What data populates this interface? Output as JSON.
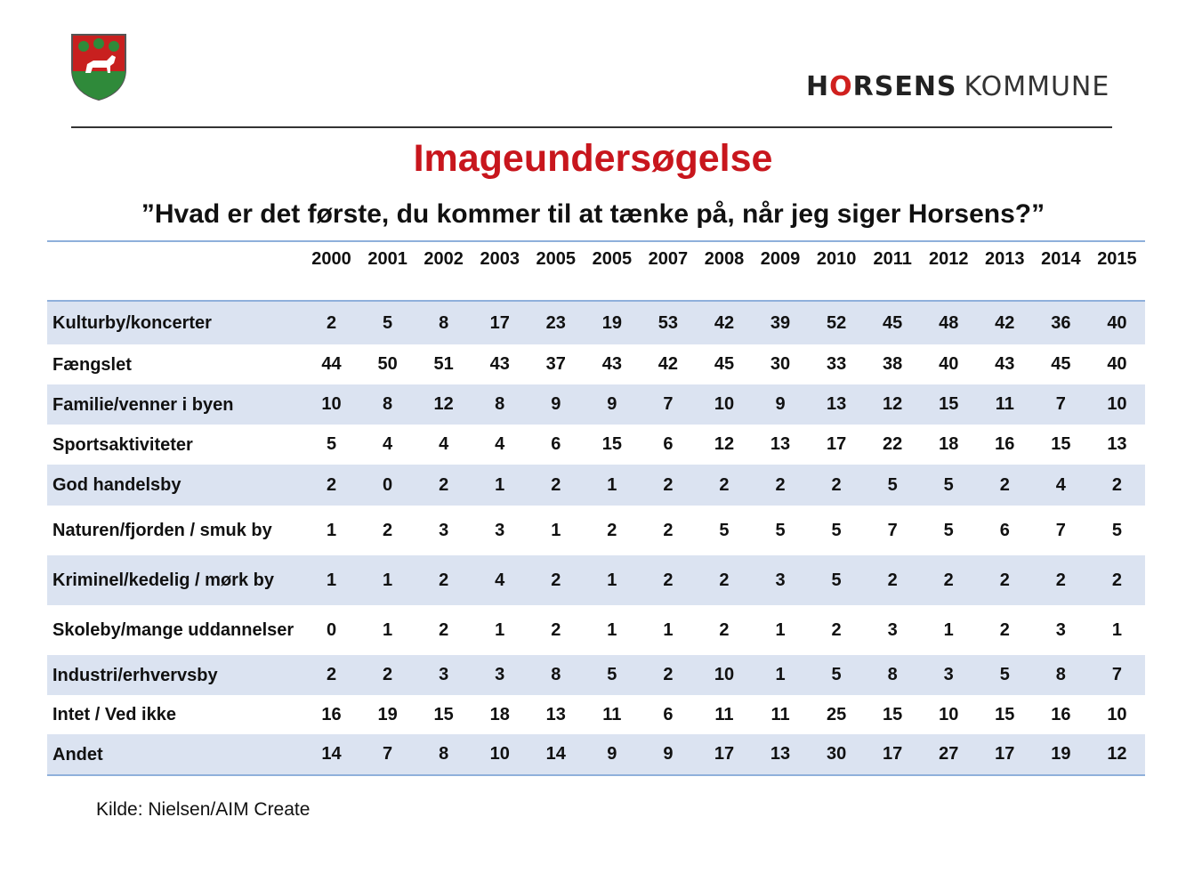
{
  "brand": {
    "part1_before": "H",
    "part1_o": "O",
    "part1_after": "RSENS",
    "part2": "KOMMUNE"
  },
  "title": "Imageundersøgelse",
  "question": "”Hvad er det første, du kommer til at tænke på, når jeg siger Horsens?”",
  "table": {
    "years": [
      "2000",
      "2001",
      "2002",
      "2003",
      "2005",
      "2005",
      "2007",
      "2008",
      "2009",
      "2010",
      "2011",
      "2012",
      "2013",
      "2014",
      "2015"
    ],
    "rows": [
      {
        "label": "Kulturby/koncerter",
        "values": [
          "2",
          "5",
          "8",
          "17",
          "23",
          "19",
          "53",
          "42",
          "39",
          "52",
          "45",
          "48",
          "42",
          "36",
          "40"
        ]
      },
      {
        "label": "Fængslet",
        "values": [
          "44",
          "50",
          "51",
          "43",
          "37",
          "43",
          "42",
          "45",
          "30",
          "33",
          "38",
          "40",
          "43",
          "45",
          "40"
        ]
      },
      {
        "label": "Familie/venner i byen",
        "values": [
          "10",
          "8",
          "12",
          "8",
          "9",
          "9",
          "7",
          "10",
          "9",
          "13",
          "12",
          "15",
          "11",
          "7",
          "10"
        ]
      },
      {
        "label": "Sportsaktiviteter",
        "values": [
          "5",
          "4",
          "4",
          "4",
          "6",
          "15",
          "6",
          "12",
          "13",
          "17",
          "22",
          "18",
          "16",
          "15",
          "13"
        ]
      },
      {
        "label": "God handelsby",
        "values": [
          "2",
          "0",
          "2",
          "1",
          "2",
          "1",
          "2",
          "2",
          "2",
          "2",
          "5",
          "5",
          "2",
          "4",
          "2"
        ]
      },
      {
        "label": "Naturen/fjorden / smuk by",
        "values": [
          "1",
          "2",
          "3",
          "3",
          "1",
          "2",
          "2",
          "5",
          "5",
          "5",
          "7",
          "5",
          "6",
          "7",
          "5"
        ]
      },
      {
        "label": "Kriminel/kedelig / mørk by",
        "values": [
          "1",
          "1",
          "2",
          "4",
          "2",
          "1",
          "2",
          "2",
          "3",
          "5",
          "2",
          "2",
          "2",
          "2",
          "2"
        ]
      },
      {
        "label": "Skoleby/mange uddannelser",
        "values": [
          "0",
          "1",
          "2",
          "1",
          "2",
          "1",
          "1",
          "2",
          "1",
          "2",
          "3",
          "1",
          "2",
          "3",
          "1"
        ]
      },
      {
        "label": "Industri/erhvervsby",
        "values": [
          "2",
          "2",
          "3",
          "3",
          "8",
          "5",
          "2",
          "10",
          "1",
          "5",
          "8",
          "3",
          "5",
          "8",
          "7"
        ]
      },
      {
        "label": "Intet / Ved ikke",
        "values": [
          "16",
          "19",
          "15",
          "18",
          "13",
          "11",
          "6",
          "11",
          "11",
          "25",
          "15",
          "10",
          "15",
          "16",
          "10"
        ]
      },
      {
        "label": "Andet",
        "values": [
          "14",
          "7",
          "8",
          "10",
          "14",
          "9",
          "9",
          "17",
          "13",
          "30",
          "17",
          "27",
          "17",
          "19",
          "12"
        ]
      }
    ]
  },
  "source": "Kilde: Nielsen/AIM Create",
  "colors": {
    "title": "#c8161d",
    "row_shade": "#dbe3f1",
    "rule_blue": "#8fb0db",
    "crest_red": "#c8201f",
    "crest_green": "#2f8a3a"
  }
}
